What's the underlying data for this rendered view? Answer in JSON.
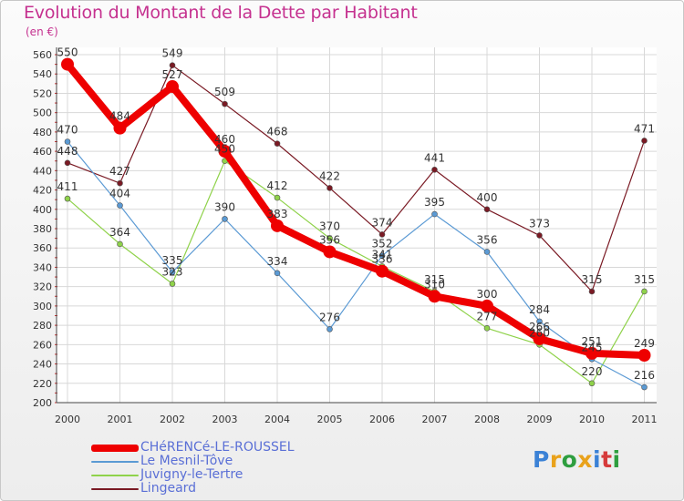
{
  "chart_data": {
    "type": "line",
    "title": "Evolution du Montant de la Dette par Habitant",
    "subtitle": "(en €)",
    "x": [
      "2000",
      "2001",
      "2002",
      "2003",
      "2004",
      "2005",
      "2006",
      "2007",
      "2008",
      "2009",
      "2010",
      "2011"
    ],
    "ylim": [
      200,
      560
    ],
    "yticks": [
      200,
      220,
      240,
      260,
      280,
      300,
      320,
      340,
      360,
      380,
      400,
      420,
      440,
      460,
      480,
      500,
      520,
      540,
      560
    ],
    "grid": true,
    "legend_position": "bottom-left",
    "series": [
      {
        "name": "CHéRENCé-LE-ROUSSEL",
        "color": "#ee0000",
        "values": [
          550,
          484,
          527,
          460,
          383,
          356,
          336,
          310,
          300,
          266,
          251,
          249
        ],
        "labels": [
          "550",
          "484",
          "527",
          "460",
          "383",
          "356",
          "336",
          "310",
          "300",
          "266",
          "251",
          "249"
        ]
      },
      {
        "name": "Le Mesnil-Tôve",
        "color": "#5b9ad4",
        "values": [
          470,
          404,
          335,
          390,
          334,
          276,
          352,
          395,
          356,
          284,
          245,
          216
        ],
        "labels": [
          "470",
          "404",
          "335",
          "390",
          "334",
          "276",
          "352",
          "395",
          "356",
          "284",
          "245",
          "216"
        ]
      },
      {
        "name": "Juvigny-le-Tertre",
        "color": "#8fd24a",
        "values": [
          411,
          364,
          323,
          450,
          412,
          370,
          341,
          315,
          277,
          260,
          220,
          315
        ],
        "labels": [
          "411",
          "364",
          "323",
          "450",
          "412",
          "370",
          "341",
          "315",
          "277",
          "260",
          "220",
          "315"
        ]
      },
      {
        "name": "Lingeard",
        "color": "#7a1a24",
        "values": [
          448,
          427,
          549,
          509,
          468,
          422,
          374,
          441,
          400,
          373,
          315,
          471
        ],
        "labels": [
          "448",
          "427",
          "549",
          "509",
          "468",
          "422",
          "374",
          "441",
          "400",
          "373",
          "315",
          "471"
        ]
      }
    ]
  },
  "logo": {
    "text": "Proxiti",
    "colors": [
      "#3b82d6",
      "#e9a21b",
      "#2e9e3f",
      "#e9a21b",
      "#3b82d6",
      "#d63b3b",
      "#2e9e3f"
    ]
  }
}
